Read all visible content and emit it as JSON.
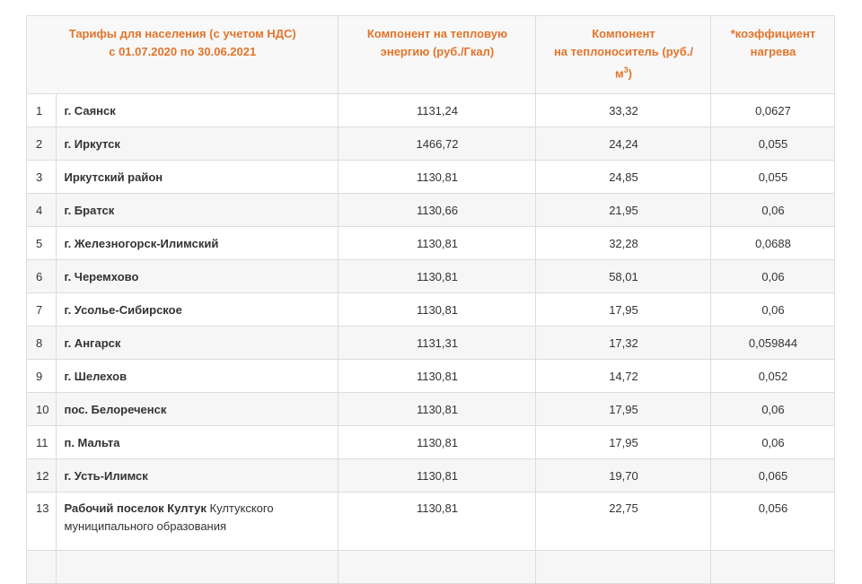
{
  "table": {
    "header": {
      "col1": [
        "Тарифы для населения (с учетом НДС)",
        "с 01.07.2020 по 30.06.2021"
      ],
      "col2": [
        "Компонент на тепловую",
        "энергию (руб./Гкал)"
      ],
      "col3": {
        "line1": "Компонент",
        "line2": "на теплоноситель  (руб./",
        "line3": "м",
        "sup": "3",
        "close": ")"
      },
      "col4": [
        "*коэффициент",
        "нагрева"
      ]
    },
    "rows": [
      {
        "num": "1",
        "name": "г. Саянск",
        "energy": "1131,24",
        "carrier": "33,32",
        "coef": "0,0627"
      },
      {
        "num": "2",
        "name": "г. Иркутск",
        "energy": "1466,72",
        "carrier": "24,24",
        "coef": "0,055"
      },
      {
        "num": "3",
        "name": "Иркутский район",
        "energy": "1130,81",
        "carrier": "24,85",
        "coef": "0,055"
      },
      {
        "num": "4",
        "name": "г. Братск",
        "energy": "1130,66",
        "carrier": "21,95",
        "coef": "0,06"
      },
      {
        "num": "5",
        "name": "г. Железногорск-Илимский",
        "energy": "1130,81",
        "carrier": "32,28",
        "coef": "0,0688"
      },
      {
        "num": "6",
        "name": "г. Черемхово",
        "energy": "1130,81",
        "carrier": "58,01",
        "coef": "0,06"
      },
      {
        "num": "7",
        "name": "г. Усолье-Сибирское",
        "energy": "1130,81",
        "carrier": "17,95",
        "coef": "0,06"
      },
      {
        "num": "8",
        "name": "г. Ангарск",
        "energy": "1131,31",
        "carrier": "17,32",
        "coef": "0,059844"
      },
      {
        "num": "9",
        "name": "г. Шелехов",
        "energy": "1130,81",
        "carrier": "14,72",
        "coef": "0,052"
      },
      {
        "num": "10",
        "name": "пос. Белореченск",
        "energy": "1130,81",
        "carrier": "17,95",
        "coef": "0,06"
      },
      {
        "num": "11",
        "name": "п. Мальта",
        "energy": "1130,81",
        "carrier": "17,95",
        "coef": "0,06"
      },
      {
        "num": "12",
        "name": "г. Усть-Илимск",
        "energy": "1130,81",
        "carrier": "19,70",
        "coef": "0,065"
      },
      {
        "num": "13",
        "name": "Рабочий поселок Култук",
        "detail": "Култукского муниципального образования",
        "energy": "1130,81",
        "carrier": "22,75",
        "coef": "0,056"
      }
    ]
  }
}
